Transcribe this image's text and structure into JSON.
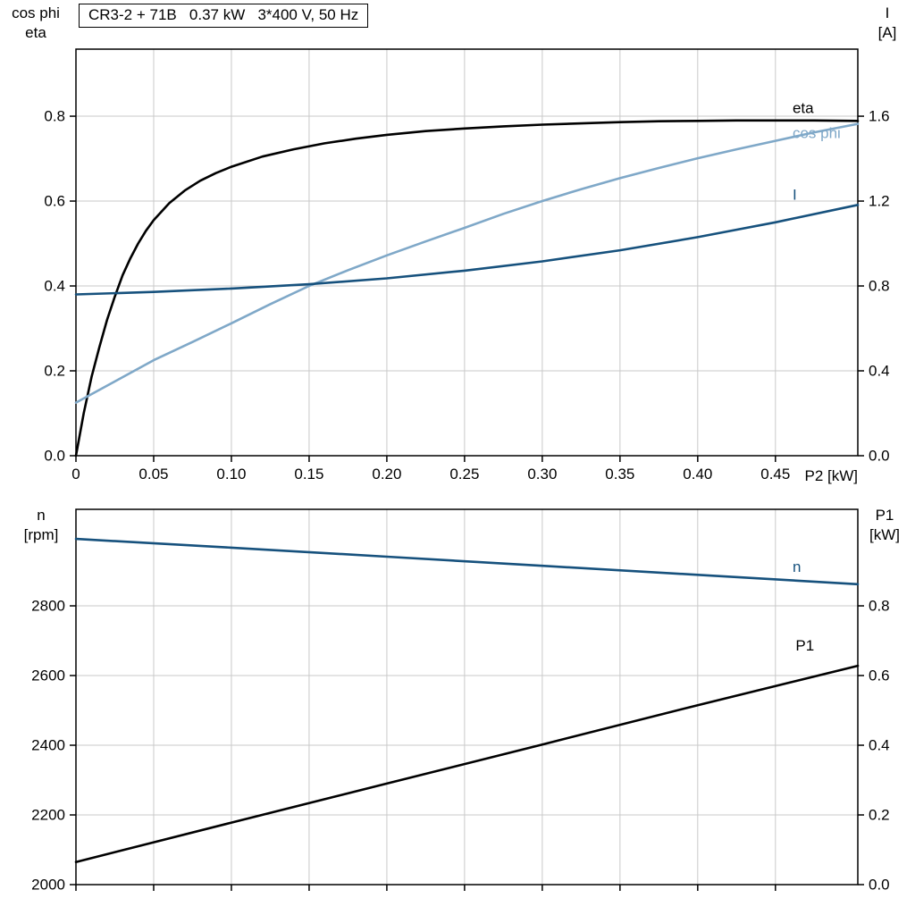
{
  "title_box": "CR3-2 + 71B   0.37 kW   3*400 V, 50 Hz",
  "labels": {
    "top_left_line1": "cos phi",
    "top_left_line2": "eta",
    "top_right_line1": "I",
    "top_right_line2": "[A]",
    "mid_left_line1": "n",
    "mid_left_line2": "[rpm]",
    "mid_right_line1": "P1",
    "mid_right_line2": "[kW]",
    "x_axis": "P2 [kW]"
  },
  "colors": {
    "black": "#000000",
    "dark_blue": "#16517d",
    "light_blue": "#7fa8c8",
    "grid": "#c9c9c9"
  },
  "chart_data": [
    {
      "type": "line",
      "title": "CR3-2 + 71B   0.37 kW   3*400 V, 50 Hz",
      "xlabel": "P2 [kW]",
      "xlim": [
        0,
        0.503
      ],
      "x_tick_values": [
        0,
        0.05,
        0.1,
        0.15,
        0.2,
        0.25,
        0.3,
        0.35,
        0.4,
        0.45
      ],
      "x_tick_labels": [
        "0",
        "0.05",
        "0.10",
        "0.15",
        "0.20",
        "0.25",
        "0.30",
        "0.35",
        "0.40",
        "0.45"
      ],
      "left_axis": {
        "label": "cos phi / eta",
        "range": [
          0,
          0.958
        ],
        "tick_values": [
          0.0,
          0.2,
          0.4,
          0.6,
          0.8
        ],
        "tick_labels": [
          "0.0",
          "0.2",
          "0.4",
          "0.6",
          "0.8"
        ]
      },
      "right_axis": {
        "label": "I [A]",
        "range": [
          0,
          1.916
        ],
        "tick_values": [
          0.0,
          0.4,
          0.8,
          1.2,
          1.6
        ],
        "tick_labels": [
          "0.0",
          "0.4",
          "0.8",
          "1.2",
          "1.6"
        ]
      },
      "grid": true,
      "legend_position": "inline-right",
      "series": [
        {
          "name": "eta",
          "axis": "left",
          "color": "#000000",
          "label_x": 0.461,
          "label_y": 0.807,
          "x": [
            0,
            0.005,
            0.01,
            0.015,
            0.02,
            0.025,
            0.03,
            0.035,
            0.04,
            0.045,
            0.05,
            0.06,
            0.07,
            0.08,
            0.09,
            0.1,
            0.12,
            0.14,
            0.16,
            0.18,
            0.2,
            0.225,
            0.25,
            0.275,
            0.3,
            0.325,
            0.35,
            0.375,
            0.4,
            0.425,
            0.45,
            0.475,
            0.503
          ],
          "y": [
            0,
            0.1,
            0.185,
            0.255,
            0.32,
            0.375,
            0.425,
            0.465,
            0.5,
            0.53,
            0.555,
            0.595,
            0.625,
            0.648,
            0.666,
            0.681,
            0.705,
            0.722,
            0.736,
            0.747,
            0.756,
            0.765,
            0.771,
            0.776,
            0.78,
            0.783,
            0.786,
            0.788,
            0.789,
            0.79,
            0.79,
            0.79,
            0.789
          ]
        },
        {
          "name": "cos phi",
          "axis": "left",
          "color": "#7fa8c8",
          "label_x": 0.461,
          "label_y": 0.748,
          "x": [
            0,
            0.025,
            0.05,
            0.075,
            0.1,
            0.125,
            0.15,
            0.175,
            0.2,
            0.225,
            0.25,
            0.275,
            0.3,
            0.325,
            0.35,
            0.375,
            0.4,
            0.425,
            0.45,
            0.475,
            0.503
          ],
          "y": [
            0.125,
            0.175,
            0.225,
            0.268,
            0.312,
            0.357,
            0.4,
            0.437,
            0.472,
            0.505,
            0.537,
            0.57,
            0.6,
            0.628,
            0.654,
            0.678,
            0.701,
            0.722,
            0.742,
            0.762,
            0.782
          ]
        },
        {
          "name": "I",
          "axis": "right",
          "color": "#16517d",
          "label_x": 0.461,
          "label_y": 1.207,
          "x": [
            0,
            0.05,
            0.1,
            0.15,
            0.2,
            0.25,
            0.3,
            0.35,
            0.4,
            0.45,
            0.503
          ],
          "y": [
            0.76,
            0.772,
            0.788,
            0.808,
            0.836,
            0.872,
            0.916,
            0.968,
            1.03,
            1.1,
            1.182
          ]
        }
      ]
    },
    {
      "type": "line",
      "title": "",
      "xlabel": "",
      "xlim": [
        0,
        0.503
      ],
      "x_tick_values": [
        0,
        0.05,
        0.1,
        0.15,
        0.2,
        0.25,
        0.3,
        0.35,
        0.4,
        0.45
      ],
      "x_tick_labels": [],
      "left_axis": {
        "label": "n [rpm]",
        "range": [
          2000,
          3077
        ],
        "tick_values": [
          2000,
          2200,
          2400,
          2600,
          2800
        ],
        "tick_labels": [
          "2000",
          "2200",
          "2400",
          "2600",
          "2800"
        ]
      },
      "right_axis": {
        "label": "P1 [kW]",
        "range": [
          0,
          1.077
        ],
        "tick_values": [
          0.0,
          0.2,
          0.4,
          0.6,
          0.8
        ],
        "tick_labels": [
          "0.0",
          "0.2",
          "0.4",
          "0.6",
          "0.8"
        ]
      },
      "grid": true,
      "legend_position": "inline-right",
      "series": [
        {
          "name": "n",
          "axis": "left",
          "color": "#16517d",
          "label_x": 0.461,
          "label_y": 2897,
          "x": [
            0,
            0.1,
            0.2,
            0.3,
            0.4,
            0.503
          ],
          "y": [
            2992,
            2967,
            2941,
            2915,
            2889,
            2862
          ]
        },
        {
          "name": "P1",
          "axis": "right",
          "color": "#000000",
          "label_x": 0.463,
          "label_y": 0.672,
          "x": [
            0,
            0.1,
            0.2,
            0.3,
            0.4,
            0.503
          ],
          "y": [
            0.065,
            0.178,
            0.29,
            0.402,
            0.515,
            0.628
          ]
        }
      ]
    }
  ]
}
